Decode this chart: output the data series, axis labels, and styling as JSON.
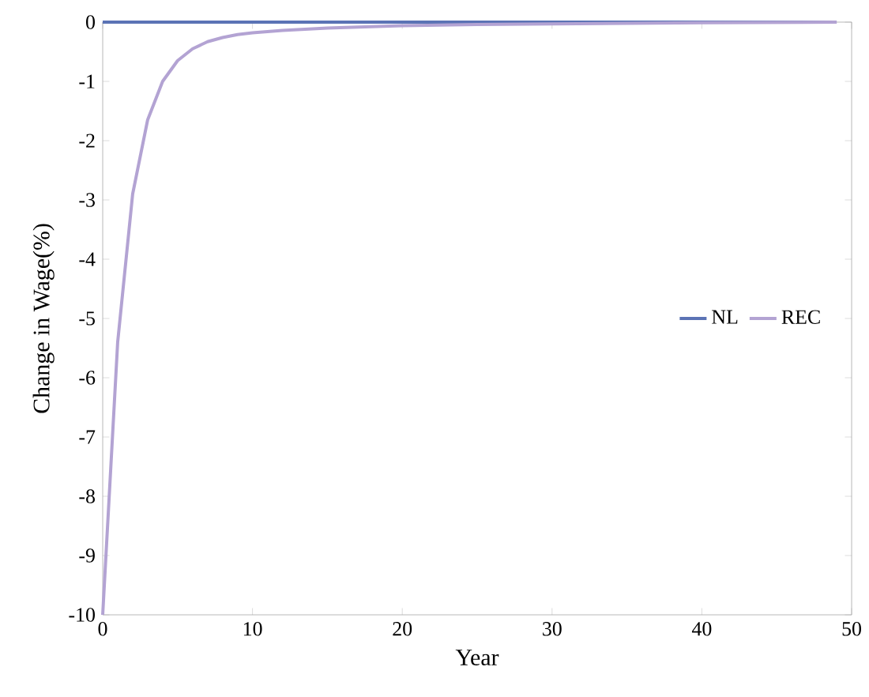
{
  "chart_data": {
    "type": "line",
    "xlabel": "Year",
    "ylabel": "Change in Wage(%)",
    "xlim": [
      0,
      50
    ],
    "xticks": [
      0,
      10,
      20,
      30,
      40,
      50
    ],
    "ylim": [
      -10,
      0
    ],
    "yticks": [
      -10,
      -9,
      -8,
      -7,
      -6,
      -5,
      -4,
      -3,
      -2,
      -1,
      0
    ],
    "grid": false,
    "legend": "right",
    "marker": "none",
    "line_style": "solid",
    "series": [
      {
        "name": "NL",
        "color": "#5b73b5",
        "x": [
          0,
          49
        ],
        "values": [
          0,
          0
        ]
      },
      {
        "name": "REC",
        "color": "#b3a3d3",
        "x": [
          0,
          1,
          2,
          3,
          4,
          5,
          6,
          7,
          8,
          9,
          10,
          12,
          15,
          20,
          25,
          30,
          40,
          49
        ],
        "values": [
          -10,
          -5.4,
          -2.9,
          -1.65,
          -1.0,
          -0.65,
          -0.45,
          -0.33,
          -0.26,
          -0.21,
          -0.18,
          -0.14,
          -0.1,
          -0.06,
          -0.04,
          -0.03,
          -0.01,
          0
        ]
      }
    ]
  }
}
